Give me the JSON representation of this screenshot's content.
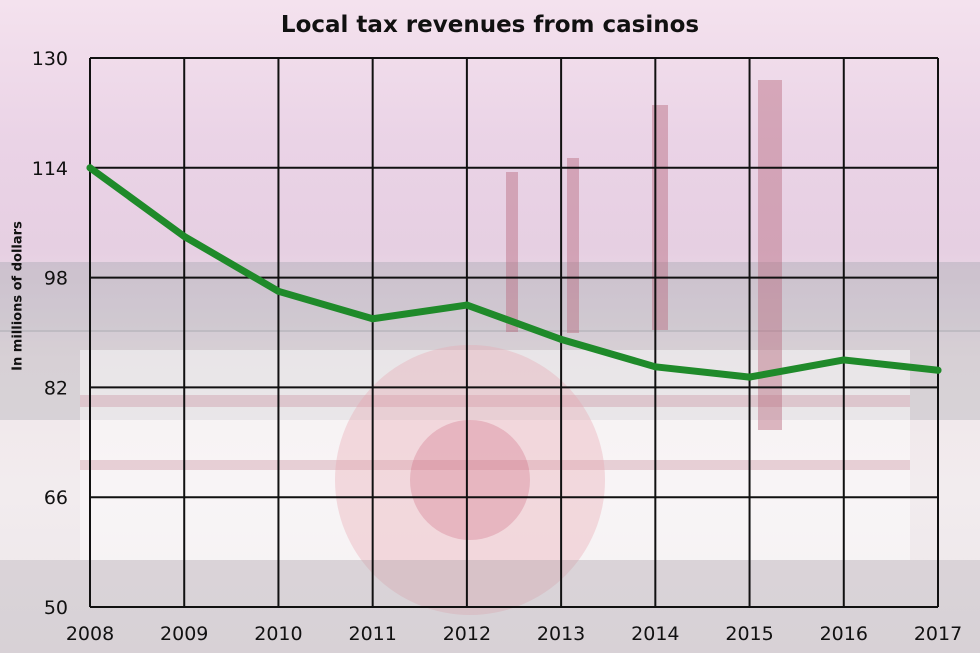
{
  "chart_data": {
    "type": "line",
    "title": "Local tax revenues from casinos",
    "ylabel": "In millions of dollars",
    "xlabel": "",
    "x": [
      2008,
      2009,
      2010,
      2011,
      2012,
      2013,
      2014,
      2015,
      2016,
      2017
    ],
    "series": [
      {
        "values": [
          114,
          104,
          96,
          92,
          94,
          89,
          85,
          83.5,
          86,
          84.5
        ],
        "color": "#1f8a2a"
      }
    ],
    "ylim": [
      50,
      130
    ],
    "yticks": [
      50,
      66,
      82,
      98,
      114,
      130
    ],
    "xticks": [
      2008,
      2009,
      2010,
      2011,
      2012,
      2013,
      2014,
      2015,
      2016,
      2017
    ],
    "grid": true,
    "grid_color": "#111111"
  }
}
